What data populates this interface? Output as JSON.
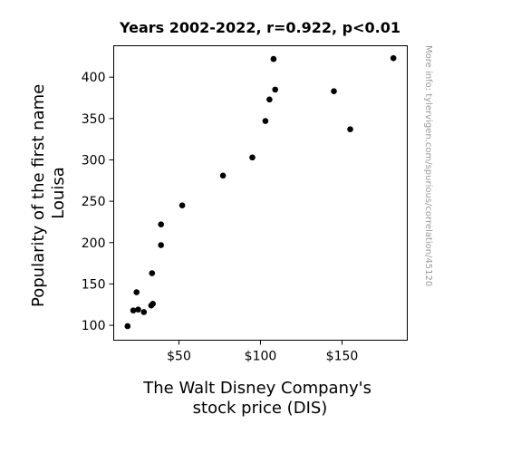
{
  "chart_data": {
    "type": "scatter",
    "title": "Years 2002-2022, r=0.922, p<0.01",
    "xlabel": [
      "The Walt Disney Company's",
      "stock price (DIS)"
    ],
    "ylabel": [
      "Popularity of the first name",
      "Louisa"
    ],
    "side_note": "More info: tylervigen.com/spurious/correlation/45120",
    "xlim": [
      10,
      190
    ],
    "ylim": [
      82,
      438
    ],
    "x_ticks": [
      {
        "value": 50,
        "label": "$50"
      },
      {
        "value": 100,
        "label": "$100"
      },
      {
        "value": 150,
        "label": "$150"
      }
    ],
    "y_ticks": [
      {
        "value": 100,
        "label": "100"
      },
      {
        "value": 150,
        "label": "150"
      },
      {
        "value": 200,
        "label": "200"
      },
      {
        "value": 250,
        "label": "250"
      },
      {
        "value": 300,
        "label": "300"
      },
      {
        "value": 350,
        "label": "350"
      },
      {
        "value": 400,
        "label": "400"
      }
    ],
    "grid": false,
    "point_color": "#000000",
    "points": [
      {
        "x": 18.5,
        "y": 99
      },
      {
        "x": 22.0,
        "y": 118
      },
      {
        "x": 24.0,
        "y": 140
      },
      {
        "x": 25.0,
        "y": 119
      },
      {
        "x": 28.5,
        "y": 116
      },
      {
        "x": 33.0,
        "y": 124
      },
      {
        "x": 34.0,
        "y": 126
      },
      {
        "x": 33.5,
        "y": 163
      },
      {
        "x": 39.0,
        "y": 197
      },
      {
        "x": 39.0,
        "y": 222
      },
      {
        "x": 52.0,
        "y": 245
      },
      {
        "x": 77.0,
        "y": 281
      },
      {
        "x": 95.0,
        "y": 303
      },
      {
        "x": 103.0,
        "y": 347
      },
      {
        "x": 105.5,
        "y": 373
      },
      {
        "x": 108.0,
        "y": 422
      },
      {
        "x": 109.0,
        "y": 385
      },
      {
        "x": 145.0,
        "y": 383
      },
      {
        "x": 155.0,
        "y": 337
      },
      {
        "x": 181.5,
        "y": 423
      }
    ]
  }
}
